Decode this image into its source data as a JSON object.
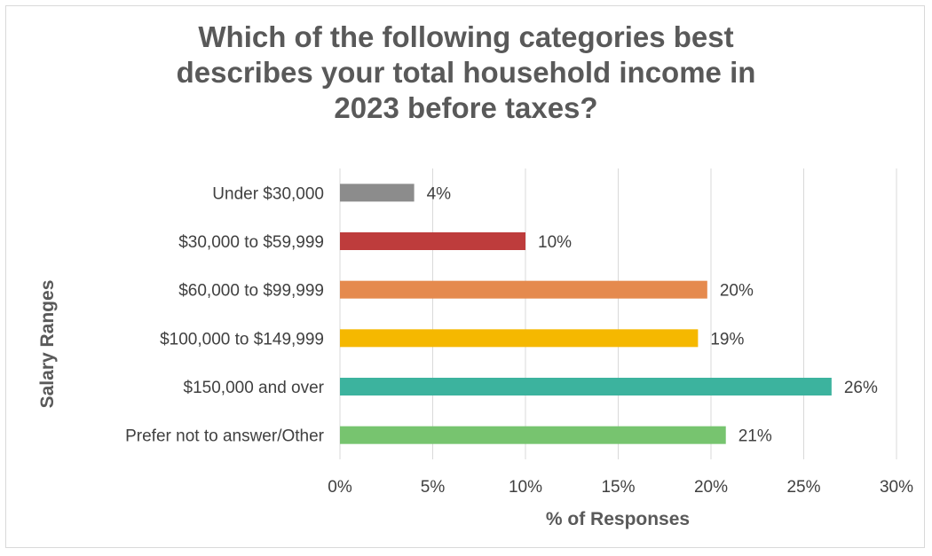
{
  "chart_data": {
    "type": "bar",
    "orientation": "horizontal",
    "title_lines": [
      "Which of the following categories best",
      "describes your total household income in",
      "2023 before taxes?"
    ],
    "xlabel": "% of Responses",
    "ylabel": "Salary Ranges",
    "xlim": [
      0,
      30
    ],
    "x_ticks": [
      0,
      5,
      10,
      15,
      20,
      25,
      30
    ],
    "x_tick_labels": [
      "0%",
      "5%",
      "10%",
      "15%",
      "20%",
      "25%",
      "30%"
    ],
    "grid": "vertical",
    "legend": "none",
    "categories": [
      "Under $30,000",
      "$30,000 to $59,999",
      "$60,000 to $99,999",
      "$100,000 to $149,999",
      "$150,000 and over",
      "Prefer not to answer/Other"
    ],
    "values": [
      4,
      10,
      19.8,
      19.3,
      26.5,
      20.8
    ],
    "data_labels": [
      "4%",
      "10%",
      "20%",
      "19%",
      "26%",
      "21%"
    ],
    "colors": [
      "#8c8c8c",
      "#be3c3c",
      "#e58a4e",
      "#f5b800",
      "#3cb39e",
      "#77c46f"
    ]
  }
}
